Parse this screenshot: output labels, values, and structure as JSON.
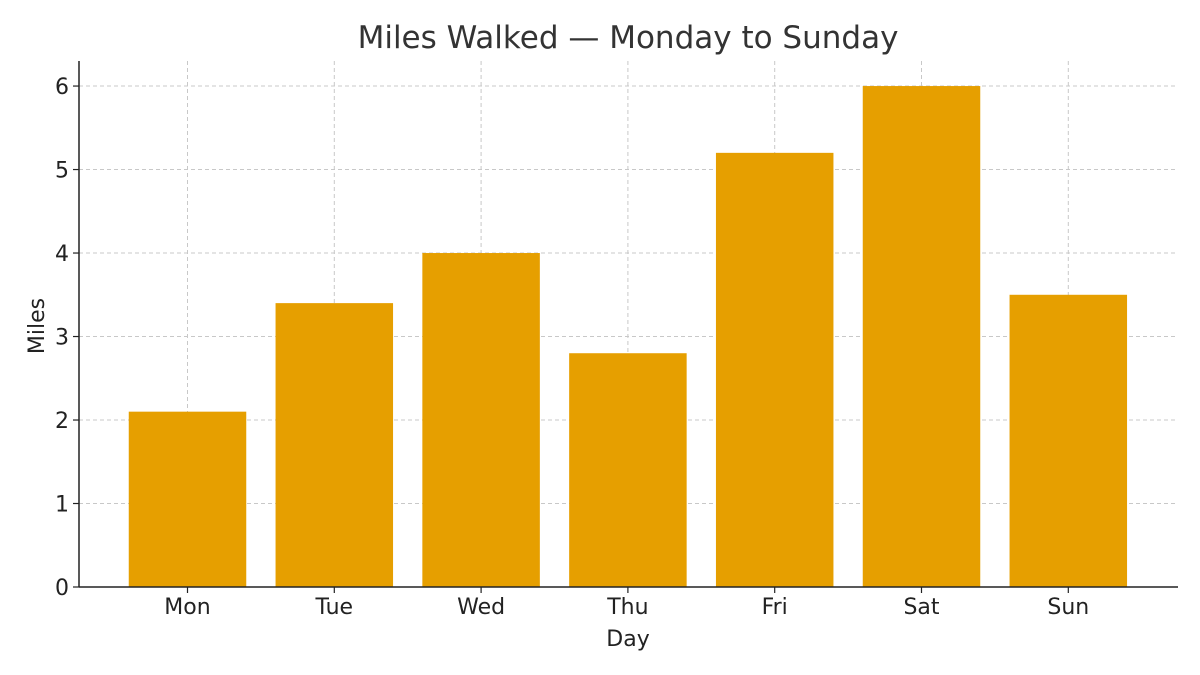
{
  "chart_data": {
    "type": "bar",
    "title": "Miles Walked — Monday to Sunday",
    "xlabel": "Day",
    "ylabel": "Miles",
    "categories": [
      "Mon",
      "Tue",
      "Wed",
      "Thu",
      "Fri",
      "Sat",
      "Sun"
    ],
    "values": [
      2.1,
      3.4,
      4.0,
      2.8,
      5.2,
      6.0,
      3.5
    ],
    "ylim": [
      0,
      6.3
    ],
    "yticks": [
      "0",
      "1",
      "2",
      "3",
      "4",
      "5",
      "6"
    ],
    "grid": true,
    "bar_color": "#E69F00"
  }
}
